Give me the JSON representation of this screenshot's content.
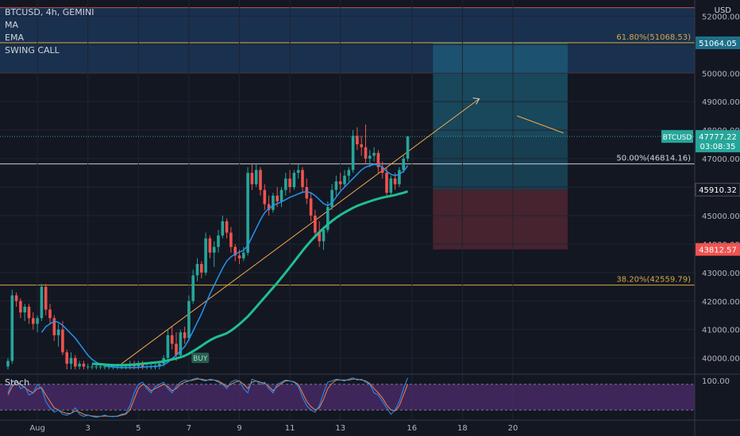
{
  "header": {
    "symbol_line": "BTCUSD, 4h, GEMINI",
    "indicators": [
      "MA",
      "EMA",
      "SWING CALL"
    ],
    "currency": "USD"
  },
  "colors": {
    "background": "#131722",
    "grid": "#1f2430",
    "up": "#26a69a",
    "down": "#ef5350",
    "ma": "#2196f3",
    "ema": "#1fbf8f",
    "trendline": "#f7a64a",
    "fib": "#d4a942",
    "profit_zone": "#1f6f8b",
    "loss_zone": "#5c2a35",
    "top_zone": "#1e3a5f",
    "stoch_k": "#2196f3",
    "stoch_d": "#f7804a",
    "stoch_bg": "#4a2a6a"
  },
  "chart_data": {
    "type": "candlestick",
    "y_range": [
      39600,
      52400
    ],
    "y_ticks": [
      "52000.00",
      "51000.00",
      "50000.00",
      "49000.00",
      "48000.00",
      "47000.00",
      "46000.00",
      "45000.00",
      "44000.00",
      "43000.00",
      "42000.00",
      "41000.00",
      "40000.00"
    ],
    "y_tick_values": [
      52000,
      51000,
      50000,
      49000,
      48000,
      47000,
      46000,
      45000,
      44000,
      43000,
      42000,
      41000,
      40000
    ],
    "x_ticks": [
      "Aug",
      "3",
      "5",
      "7",
      "9",
      "11",
      "13",
      "16",
      "18",
      "20"
    ],
    "x_tick_index": [
      7,
      19,
      31,
      43,
      55,
      67,
      79,
      96,
      108,
      120
    ],
    "candles": [
      [
        39700,
        40000,
        39600,
        39900
      ],
      [
        39900,
        42400,
        39800,
        42200
      ],
      [
        42200,
        42300,
        41800,
        42000
      ],
      [
        42000,
        42100,
        41400,
        41600
      ],
      [
        41600,
        41900,
        41300,
        41800
      ],
      [
        41800,
        41900,
        41200,
        41400
      ],
      [
        41400,
        41600,
        41000,
        41200
      ],
      [
        41200,
        41500,
        40900,
        41400
      ],
      [
        41400,
        42600,
        41300,
        42500
      ],
      [
        42500,
        42600,
        41500,
        41700
      ],
      [
        41700,
        41900,
        41200,
        41400
      ],
      [
        41400,
        41500,
        40600,
        40800
      ],
      [
        40800,
        41200,
        40400,
        41000
      ],
      [
        41000,
        41300,
        40100,
        40200
      ],
      [
        40200,
        40300,
        39600,
        39800
      ],
      [
        39800,
        40200,
        39600,
        40000
      ],
      [
        40000,
        40100,
        39600,
        39700
      ],
      [
        39700,
        39900,
        39600,
        39800
      ],
      [
        39800,
        39900,
        39600,
        39700
      ],
      [
        39700,
        39800,
        39600,
        39700
      ],
      [
        39700,
        39800,
        39600,
        39700
      ],
      [
        39700,
        39800,
        39600,
        39700
      ],
      [
        39700,
        39800,
        39600,
        39700
      ],
      [
        39700,
        39800,
        39600,
        39700
      ],
      [
        39700,
        39800,
        39600,
        39700
      ],
      [
        39700,
        39800,
        39600,
        39700
      ],
      [
        39700,
        39800,
        39600,
        39700
      ],
      [
        39700,
        39800,
        39600,
        39700
      ],
      [
        39700,
        39800,
        39600,
        39700
      ],
      [
        39700,
        39900,
        39600,
        39800
      ],
      [
        39800,
        39900,
        39600,
        39700
      ],
      [
        39700,
        39900,
        39600,
        39800
      ],
      [
        39800,
        39900,
        39600,
        39700
      ],
      [
        39700,
        39800,
        39600,
        39700
      ],
      [
        39700,
        39800,
        39600,
        39700
      ],
      [
        39700,
        39800,
        39600,
        39700
      ],
      [
        39700,
        39900,
        39600,
        39800
      ],
      [
        39800,
        40100,
        39700,
        40000
      ],
      [
        40000,
        41000,
        39900,
        40800
      ],
      [
        40800,
        41100,
        40300,
        40500
      ],
      [
        40500,
        40900,
        39900,
        40100
      ],
      [
        40100,
        41000,
        40000,
        40900
      ],
      [
        40900,
        41100,
        40500,
        40700
      ],
      [
        40700,
        42200,
        40600,
        42000
      ],
      [
        42000,
        43100,
        41900,
        42900
      ],
      [
        42900,
        43500,
        42700,
        43300
      ],
      [
        43300,
        43400,
        42800,
        43000
      ],
      [
        43000,
        44400,
        42900,
        44200
      ],
      [
        44200,
        44300,
        43500,
        43700
      ],
      [
        43700,
        44100,
        43200,
        43900
      ],
      [
        43900,
        44500,
        43700,
        44300
      ],
      [
        44300,
        45000,
        44200,
        44800
      ],
      [
        44800,
        44900,
        44200,
        44400
      ],
      [
        44400,
        44600,
        43700,
        43900
      ],
      [
        43900,
        44000,
        43400,
        43600
      ],
      [
        43600,
        43800,
        43300,
        43500
      ],
      [
        43500,
        43900,
        43400,
        43700
      ],
      [
        43700,
        46700,
        43600,
        46500
      ],
      [
        46500,
        46800,
        45900,
        46100
      ],
      [
        46100,
        46800,
        46000,
        46600
      ],
      [
        46600,
        46700,
        45700,
        45900
      ],
      [
        45900,
        46100,
        45200,
        45400
      ],
      [
        45400,
        45700,
        45000,
        45200
      ],
      [
        45200,
        45800,
        45100,
        45700
      ],
      [
        45700,
        46000,
        45300,
        45500
      ],
      [
        45500,
        46000,
        45300,
        45900
      ],
      [
        45900,
        46500,
        45700,
        46300
      ],
      [
        46300,
        46600,
        45800,
        46000
      ],
      [
        46000,
        46600,
        45900,
        46500
      ],
      [
        46500,
        46800,
        46300,
        46600
      ],
      [
        46600,
        46700,
        45800,
        46000
      ],
      [
        46000,
        46300,
        45400,
        45600
      ],
      [
        45600,
        45800,
        44800,
        45000
      ],
      [
        45000,
        45200,
        44200,
        44400
      ],
      [
        44400,
        44800,
        43900,
        44100
      ],
      [
        44100,
        44600,
        43800,
        44500
      ],
      [
        44500,
        45500,
        44400,
        45300
      ],
      [
        45300,
        46100,
        45200,
        45900
      ],
      [
        45900,
        46400,
        45700,
        46200
      ],
      [
        46200,
        46500,
        45900,
        46100
      ],
      [
        46100,
        46600,
        46000,
        46400
      ],
      [
        46400,
        46700,
        46200,
        46600
      ],
      [
        46600,
        48000,
        46500,
        47800
      ],
      [
        47800,
        48100,
        47300,
        47500
      ],
      [
        47500,
        47800,
        47100,
        47400
      ],
      [
        47400,
        48200,
        46800,
        47000
      ],
      [
        47000,
        47300,
        46700,
        47100
      ],
      [
        47100,
        47400,
        46900,
        47200
      ],
      [
        47200,
        47300,
        46500,
        46700
      ],
      [
        46700,
        46900,
        46300,
        46500
      ],
      [
        46500,
        46700,
        45700,
        45800
      ],
      [
        45800,
        46400,
        45700,
        46300
      ],
      [
        46300,
        46500,
        45900,
        46100
      ],
      [
        46100,
        46700,
        46000,
        46600
      ],
      [
        46600,
        47100,
        46500,
        47000
      ],
      [
        47000,
        47800,
        46900,
        47777
      ]
    ],
    "ma": [
      null,
      null,
      null,
      null,
      null,
      null,
      null,
      null,
      40900,
      41100,
      41200,
      41300,
      41250,
      41150,
      41000,
      40850,
      40700,
      40500,
      40300,
      40100,
      39950,
      39850,
      39780,
      39730,
      39700,
      39680,
      39670,
      39660,
      39660,
      39660,
      39660,
      39670,
      39680,
      39690,
      39700,
      39710,
      39720,
      39760,
      39850,
      39980,
      40100,
      40250,
      40400,
      40650,
      40950,
      41250,
      41550,
      41900,
      42250,
      42550,
      42850,
      43150,
      43400,
      43550,
      43650,
      43720,
      43780,
      43950,
      44250,
      44550,
      44850,
      45100,
      45250,
      45350,
      45420,
      45480,
      45560,
      45640,
      45700,
      45760,
      45820,
      45840,
      45800,
      45700,
      45560,
      45420,
      45350,
      45450,
      45650,
      45850,
      46000,
      46150,
      46300,
      46450,
      46600,
      46700,
      46750,
      46800,
      46780,
      46700,
      46550,
      46450,
      46400,
      46450,
      46550,
      46750
    ],
    "ema": [
      null,
      null,
      null,
      null,
      null,
      null,
      null,
      null,
      null,
      null,
      null,
      null,
      null,
      null,
      null,
      null,
      null,
      null,
      null,
      null,
      39800,
      39790,
      39780,
      39770,
      39760,
      39750,
      39750,
      39750,
      39755,
      39760,
      39770,
      39785,
      39800,
      39815,
      39830,
      39845,
      39860,
      39885,
      39915,
      39950,
      39985,
      40025,
      40080,
      40150,
      40240,
      40330,
      40430,
      40530,
      40620,
      40700,
      40760,
      40810,
      40870,
      40960,
      41070,
      41190,
      41320,
      41460,
      41620,
      41790,
      41960,
      42130,
      42300,
      42470,
      42640,
      42820,
      43000,
      43190,
      43380,
      43570,
      43760,
      43940,
      44110,
      44270,
      44420,
      44560,
      44690,
      44810,
      44920,
      45020,
      45110,
      45190,
      45270,
      45340,
      45400,
      45450,
      45500,
      45550,
      45590,
      45630,
      45660,
      45690,
      45720,
      45760,
      45800,
      45850
    ],
    "trendline": [
      [
        27,
        39800
      ],
      [
        112,
        49100
      ]
    ],
    "current_price": "47777.22",
    "countdown": "03:08:35",
    "price_badges": [
      "51064.05",
      "45910.32",
      "43812.57"
    ],
    "price_badge_values": [
      51064.05,
      45910.32,
      43812.57
    ],
    "fib_levels": [
      {
        "label": "61.80%(51068.53)",
        "value": 51068.53
      },
      {
        "label": "50.00%(46814.16)",
        "value": 46814.16
      },
      {
        "label": "38.20%(42559.79)",
        "value": 42559.79
      }
    ],
    "zone_prices": {
      "top_low": 50000,
      "top_high": 52300,
      "entry": 47777,
      "target": 51064,
      "stop": 43812,
      "loss_box_top": 45910
    },
    "box_x_range": [
      101,
      133
    ],
    "buy_label": "BUY",
    "buy_label_index": [
      44,
      39800
    ],
    "stoch_title": "Stoch",
    "stoch_tick": "100.00",
    "stoch_k": [
      60,
      85,
      90,
      70,
      75,
      55,
      60,
      80,
      70,
      40,
      25,
      15,
      20,
      10,
      8,
      12,
      25,
      10,
      5,
      8,
      5,
      3,
      5,
      8,
      5,
      4,
      6,
      10,
      12,
      30,
      60,
      80,
      85,
      70,
      60,
      75,
      80,
      85,
      70,
      60,
      75,
      85,
      90,
      88,
      92,
      95,
      90,
      88,
      92,
      90,
      85,
      80,
      70,
      85,
      90,
      88,
      70,
      60,
      92,
      88,
      80,
      85,
      70,
      60,
      80,
      85,
      90,
      88,
      85,
      75,
      50,
      30,
      20,
      15,
      30,
      60,
      85,
      88,
      92,
      90,
      88,
      92,
      95,
      90,
      92,
      85,
      80,
      60,
      55,
      40,
      25,
      10,
      20,
      40,
      70,
      95
    ],
    "stoch_d": [
      55,
      75,
      85,
      80,
      72,
      65,
      60,
      70,
      72,
      55,
      40,
      25,
      20,
      15,
      12,
      12,
      18,
      15,
      10,
      8,
      6,
      5,
      5,
      6,
      5,
      5,
      5,
      8,
      10,
      20,
      45,
      70,
      80,
      75,
      65,
      70,
      75,
      80,
      75,
      65,
      70,
      80,
      85,
      88,
      90,
      92,
      92,
      90,
      90,
      90,
      88,
      82,
      75,
      80,
      85,
      88,
      80,
      70,
      85,
      88,
      85,
      82,
      75,
      65,
      75,
      82,
      88,
      88,
      86,
      80,
      60,
      40,
      28,
      20,
      25,
      45,
      70,
      82,
      90,
      90,
      90,
      90,
      92,
      92,
      90,
      88,
      82,
      70,
      60,
      48,
      32,
      20,
      18,
      30,
      55,
      80
    ]
  }
}
